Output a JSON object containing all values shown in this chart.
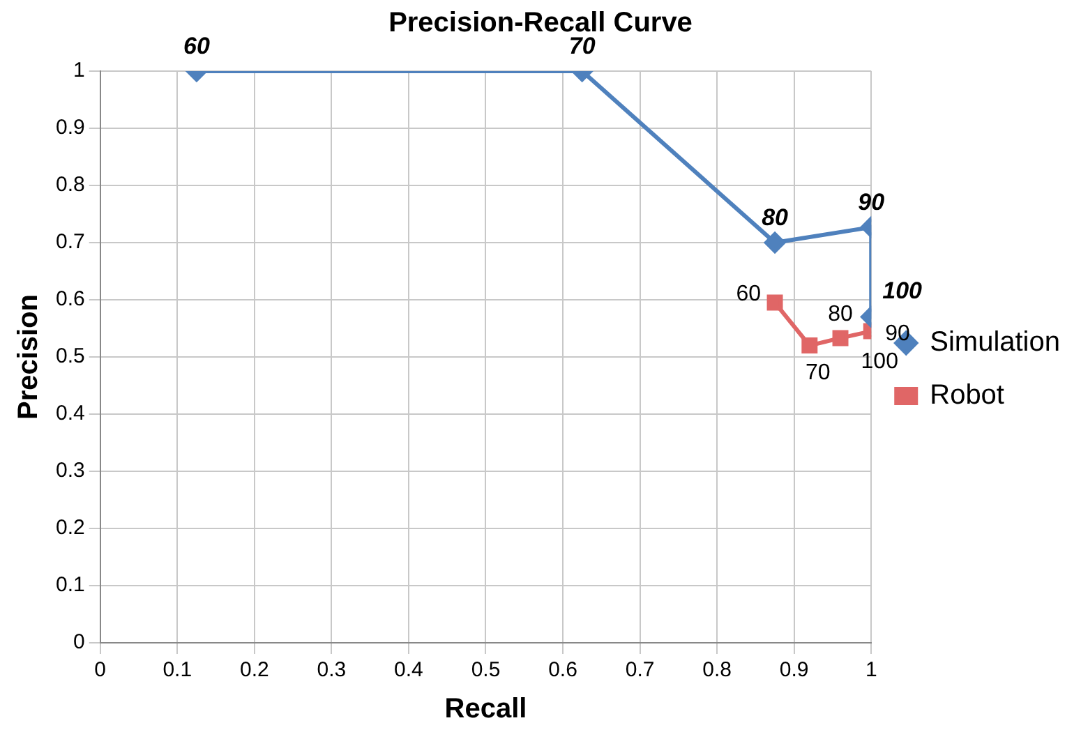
{
  "chart_data": {
    "type": "line",
    "title": "Precision-Recall Curve",
    "xlabel": "Recall",
    "ylabel": "Precision",
    "xlim": [
      0,
      1
    ],
    "ylim": [
      0,
      1
    ],
    "xticks": [
      0,
      0.1,
      0.2,
      0.3,
      0.4,
      0.5,
      0.6,
      0.7,
      0.8,
      0.9,
      1
    ],
    "yticks": [
      0,
      0.1,
      0.2,
      0.3,
      0.4,
      0.5,
      0.6,
      0.7,
      0.8,
      0.9,
      1
    ],
    "grid": true,
    "legend": "right",
    "line_style": "solid",
    "series": [
      {
        "name": "Simulation",
        "color": "#4f81bd",
        "marker": "diamond",
        "x": [
          0.125,
          0.625,
          0.875,
          1,
          1
        ],
        "values": [
          1,
          1,
          0.7,
          0.727,
          0.57
        ]
      },
      {
        "name": "Robot",
        "color": "#e06666",
        "marker": "square",
        "x": [
          0.875,
          0.92,
          0.96,
          1
        ],
        "values": [
          0.595,
          0.52,
          0.533,
          0.545
        ]
      }
    ],
    "annotations": [
      {
        "text": "60",
        "x": 0.125,
        "y": 1
      },
      {
        "text": "70",
        "x": 0.625,
        "y": 1
      },
      {
        "text": "80",
        "x": 0.875,
        "y": 0.7
      },
      {
        "text": "90",
        "x": 1,
        "y": 0.727
      },
      {
        "text": "100",
        "x": 1,
        "y": 0.57
      },
      {
        "text": "60",
        "x": 0.875,
        "y": 0.595
      },
      {
        "text": "70",
        "x": 0.92,
        "y": 0.52
      },
      {
        "text": "80",
        "x": 0.96,
        "y": 0.533
      },
      {
        "text": "90",
        "x": 1,
        "y": 0.545
      },
      {
        "text": "100",
        "x": 1,
        "y": 0.54
      }
    ]
  }
}
